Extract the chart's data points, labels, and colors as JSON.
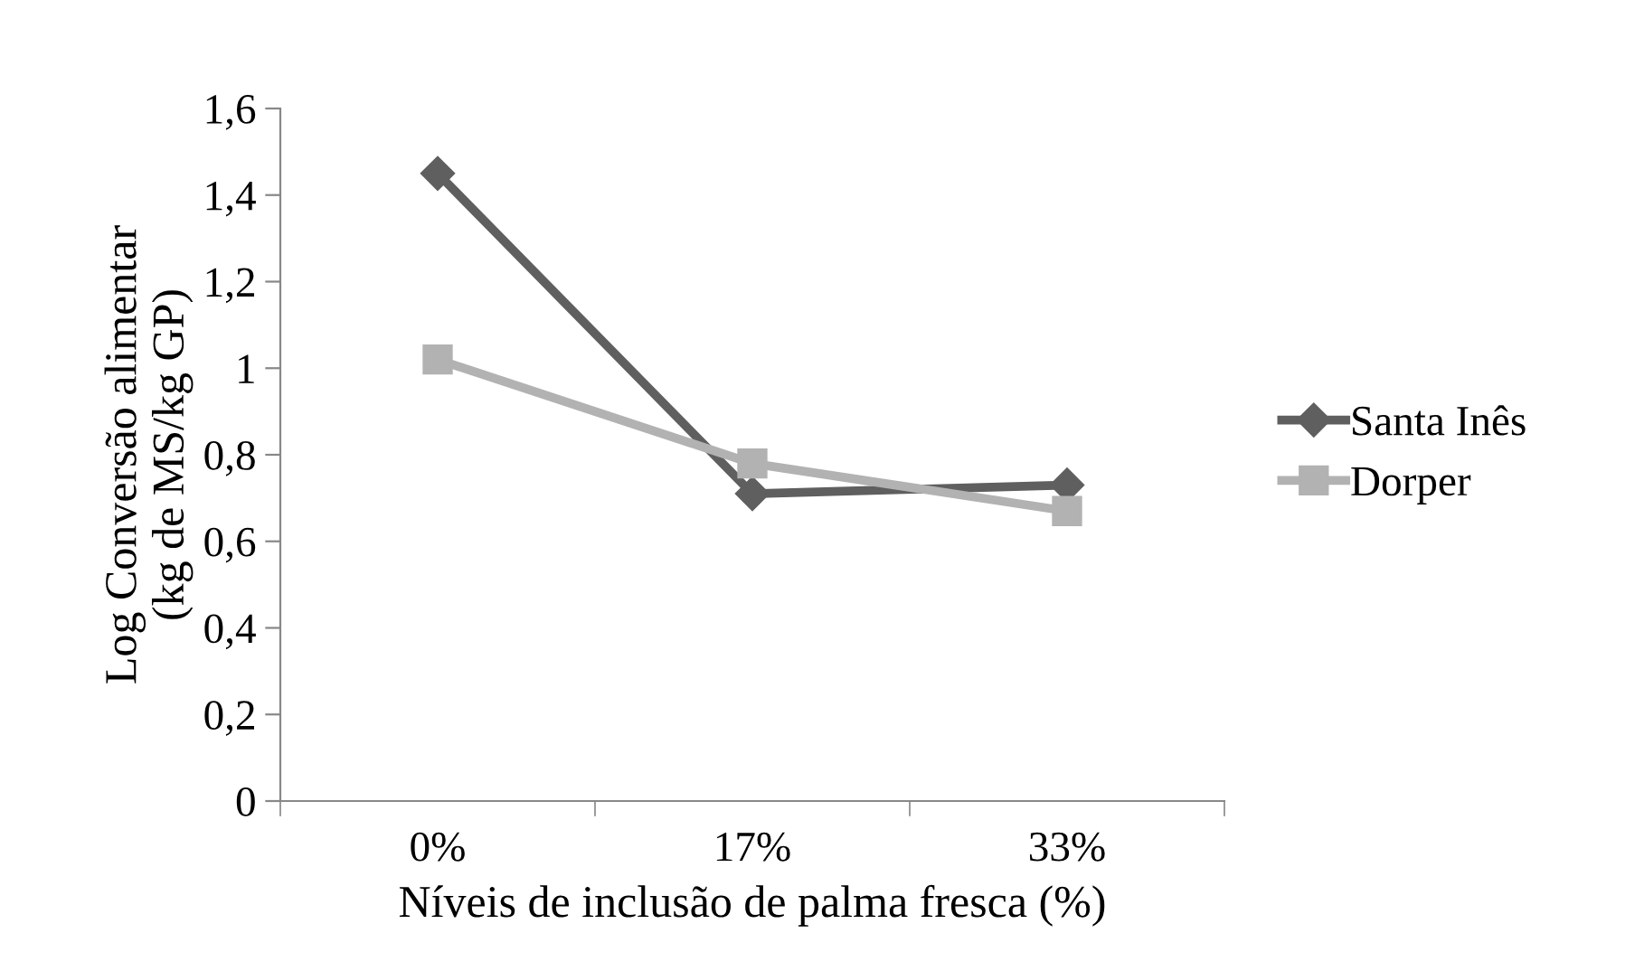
{
  "chart_data": {
    "type": "line",
    "xlabel": "Níveis de inclusão de palma fresca (%)",
    "ylabel": "Log Conversão alimentar\n(kg de MS/kg GP)",
    "categories": [
      "0%",
      "17%",
      "33%"
    ],
    "series": [
      {
        "name": "Santa Inês",
        "color": "#5f5f5f",
        "marker": "diamond",
        "values": [
          1.45,
          0.71,
          0.73
        ]
      },
      {
        "name": "Dorper",
        "color": "#b2b2b2",
        "marker": "square",
        "values": [
          1.02,
          0.78,
          0.67
        ]
      }
    ],
    "ylim": [
      0,
      1.6
    ],
    "yticks": [
      {
        "value": 0,
        "label": "0"
      },
      {
        "value": 0.2,
        "label": "0,2"
      },
      {
        "value": 0.4,
        "label": "0,4"
      },
      {
        "value": 0.6,
        "label": "0,6"
      },
      {
        "value": 0.8,
        "label": "0,8"
      },
      {
        "value": 1,
        "label": "1"
      },
      {
        "value": 1.2,
        "label": "1,2"
      },
      {
        "value": 1.4,
        "label": "1,4"
      },
      {
        "value": 1.6,
        "label": "1,6"
      }
    ],
    "grid": false,
    "legend": "right",
    "line_style": "solid"
  }
}
